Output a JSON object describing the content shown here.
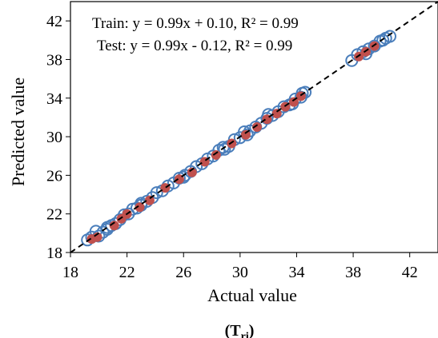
{
  "chart_data": {
    "type": "scatter",
    "xlabel": "Actual value",
    "ylabel": "Predicted value",
    "xlim": [
      18,
      44
    ],
    "ylim": [
      18,
      44
    ],
    "xticks": [
      18,
      22,
      26,
      30,
      34,
      38,
      42
    ],
    "yticks": [
      18,
      22,
      26,
      30,
      34,
      38,
      42
    ],
    "grid": false,
    "caption_main": "(T",
    "caption_sub": "ri",
    "caption_close": ")",
    "equations": [
      "Train: y = 0.99x + 0.10, R² = 0.99",
      "Test: y = 0.99x - 0.12, R² = 0.99"
    ],
    "reference_line": {
      "style": "dashed",
      "slope": 1,
      "intercept": 0
    },
    "series": [
      {
        "marker": "open-circle",
        "color": "#4a7ebb",
        "points": [
          [
            19.2,
            19.3
          ],
          [
            19.5,
            19.6
          ],
          [
            19.8,
            20.2
          ],
          [
            20.0,
            19.7
          ],
          [
            20.3,
            20.1
          ],
          [
            20.6,
            20.6
          ],
          [
            20.9,
            20.8
          ],
          [
            21.2,
            21.0
          ],
          [
            21.5,
            21.4
          ],
          [
            21.8,
            21.9
          ],
          [
            22.1,
            22.0
          ],
          [
            22.4,
            22.5
          ],
          [
            22.7,
            22.6
          ],
          [
            23.0,
            23.1
          ],
          [
            23.4,
            23.3
          ],
          [
            23.8,
            23.7
          ],
          [
            24.1,
            24.2
          ],
          [
            24.5,
            24.4
          ],
          [
            24.9,
            24.9
          ],
          [
            25.3,
            25.2
          ],
          [
            25.7,
            25.7
          ],
          [
            26.1,
            26.0
          ],
          [
            26.5,
            26.4
          ],
          [
            26.9,
            26.9
          ],
          [
            27.3,
            27.2
          ],
          [
            27.7,
            27.7
          ],
          [
            28.1,
            28.0
          ],
          [
            28.5,
            28.6
          ],
          [
            28.9,
            28.7
          ],
          [
            29.2,
            29.0
          ],
          [
            29.6,
            29.7
          ],
          [
            30.0,
            29.9
          ],
          [
            30.3,
            30.5
          ],
          [
            30.7,
            30.6
          ],
          [
            31.1,
            31.0
          ],
          [
            31.5,
            31.4
          ],
          [
            31.9,
            31.9
          ],
          [
            32.3,
            32.2
          ],
          [
            32.7,
            32.6
          ],
          [
            33.1,
            33.1
          ],
          [
            33.5,
            33.3
          ],
          [
            33.9,
            33.9
          ],
          [
            34.3,
            34.1
          ],
          [
            34.6,
            34.6
          ],
          [
            37.9,
            37.9
          ],
          [
            38.3,
            38.5
          ],
          [
            38.7,
            38.8
          ],
          [
            39.1,
            39.1
          ],
          [
            39.5,
            39.4
          ],
          [
            39.9,
            39.9
          ],
          [
            40.3,
            40.2
          ],
          [
            40.6,
            40.4
          ],
          [
            20.6,
            20.4
          ],
          [
            23.0,
            22.9
          ],
          [
            26.0,
            25.8
          ],
          [
            28.8,
            28.9
          ],
          [
            30.5,
            30.2
          ],
          [
            32.0,
            32.3
          ],
          [
            33.7,
            33.4
          ],
          [
            34.4,
            34.5
          ],
          [
            38.9,
            38.6
          ],
          [
            40.1,
            40.0
          ]
        ]
      },
      {
        "marker": "filled-circle",
        "color": "#c0504d",
        "points": [
          [
            19.5,
            19.4
          ],
          [
            19.9,
            19.6
          ],
          [
            21.1,
            20.8
          ],
          [
            21.6,
            21.5
          ],
          [
            22.0,
            22.0
          ],
          [
            22.9,
            22.7
          ],
          [
            23.6,
            23.4
          ],
          [
            24.7,
            24.7
          ],
          [
            25.7,
            25.6
          ],
          [
            26.6,
            26.3
          ],
          [
            27.5,
            27.4
          ],
          [
            28.3,
            28.1
          ],
          [
            29.4,
            29.3
          ],
          [
            30.4,
            30.2
          ],
          [
            31.2,
            31.0
          ],
          [
            31.9,
            31.8
          ],
          [
            32.6,
            32.4
          ],
          [
            33.2,
            33.1
          ],
          [
            33.8,
            33.6
          ],
          [
            34.3,
            34.2
          ],
          [
            38.4,
            38.3
          ],
          [
            38.9,
            38.8
          ],
          [
            39.5,
            39.4
          ]
        ]
      }
    ]
  }
}
